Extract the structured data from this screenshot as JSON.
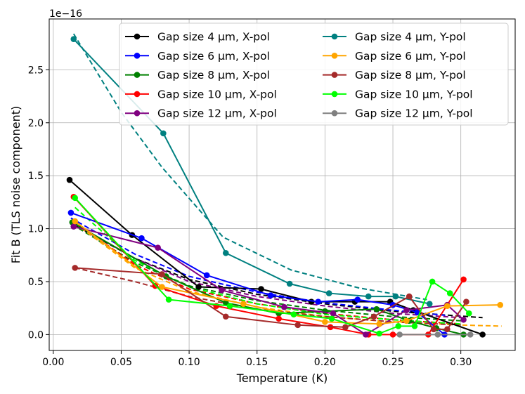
{
  "chart_data": {
    "type": "line",
    "xlabel": "Temperature (K)",
    "ylabel": "Fit B (TLS noise component)",
    "offset_label": "1e−16",
    "xlim": [
      -0.003,
      0.34
    ],
    "ylim": [
      -0.15,
      2.98
    ],
    "xticks": [
      0.0,
      0.05,
      0.1,
      0.15,
      0.2,
      0.25,
      0.3
    ],
    "xtick_labels": [
      "0.00",
      "0.05",
      "0.10",
      "0.15",
      "0.20",
      "0.25",
      "0.30"
    ],
    "yticks": [
      0.0,
      0.5,
      1.0,
      1.5,
      2.0,
      2.5
    ],
    "ytick_labels": [
      "0.0",
      "0.5",
      "1.0",
      "1.5",
      "2.0",
      "2.5"
    ],
    "grid": true,
    "legend_position": "top-right",
    "legend_columns": 2,
    "series": [
      {
        "name": "Gap size 4 μm, X-pol",
        "color": "#000000",
        "x": [
          0.012,
          0.058,
          0.107,
          0.153,
          0.19,
          0.222,
          0.248,
          0.265,
          0.316
        ],
        "y": [
          1.46,
          0.94,
          0.45,
          0.43,
          0.31,
          0.31,
          0.31,
          0.23,
          0.0
        ],
        "fit": [
          [
            0.012,
            1.06
          ],
          [
            0.06,
            0.72
          ],
          [
            0.1,
            0.52
          ],
          [
            0.15,
            0.38
          ],
          [
            0.2,
            0.29
          ],
          [
            0.25,
            0.22
          ],
          [
            0.316,
            0.16
          ]
        ]
      },
      {
        "name": "Gap size 6 μm, X-pol",
        "color": "#0000ff",
        "x": [
          0.013,
          0.065,
          0.113,
          0.16,
          0.195,
          0.224,
          0.25,
          0.268,
          0.288
        ],
        "y": [
          1.15,
          0.91,
          0.56,
          0.37,
          0.31,
          0.33,
          0.28,
          0.21,
          0.0
        ],
        "fit": [
          [
            0.013,
            1.1
          ],
          [
            0.06,
            0.76
          ],
          [
            0.1,
            0.55
          ],
          [
            0.15,
            0.4
          ],
          [
            0.2,
            0.3
          ],
          [
            0.25,
            0.23
          ],
          [
            0.29,
            0.18
          ]
        ]
      },
      {
        "name": "Gap size 8 μm, X-pol",
        "color": "#008000",
        "x": [
          0.014,
          0.083,
          0.127,
          0.166,
          0.2,
          0.238,
          0.262,
          0.282,
          0.302
        ],
        "y": [
          1.06,
          0.55,
          0.3,
          0.2,
          0.22,
          0.24,
          0.13,
          0.06,
          0.0
        ],
        "fit": [
          [
            0.014,
            1.04
          ],
          [
            0.06,
            0.68
          ],
          [
            0.1,
            0.46
          ],
          [
            0.15,
            0.32
          ],
          [
            0.2,
            0.23
          ],
          [
            0.25,
            0.17
          ],
          [
            0.3,
            0.13
          ]
        ]
      },
      {
        "name": "Gap size 10 μm, X-pol",
        "color": "#ff0000",
        "x": [
          0.015,
          0.075,
          0.12,
          0.166,
          0.204,
          0.232,
          0.25,
          0.276,
          0.302
        ],
        "y": [
          1.3,
          0.46,
          0.27,
          0.15,
          0.07,
          0.0,
          0.0,
          0.0,
          0.52
        ],
        "fit": [
          [
            0.015,
            1.07
          ],
          [
            0.06,
            0.66
          ],
          [
            0.1,
            0.43
          ],
          [
            0.15,
            0.29
          ],
          [
            0.2,
            0.2
          ],
          [
            0.25,
            0.14
          ],
          [
            0.3,
            0.1
          ]
        ]
      },
      {
        "name": "Gap size 12 μm, X-pol",
        "color": "#800080",
        "x": [
          0.015,
          0.077,
          0.124,
          0.17,
          0.206,
          0.23,
          0.26,
          0.29,
          0.302
        ],
        "y": [
          1.02,
          0.82,
          0.42,
          0.26,
          0.2,
          0.0,
          0.23,
          0.28,
          0.14
        ],
        "fit": [
          [
            0.015,
            1.05
          ],
          [
            0.06,
            0.72
          ],
          [
            0.1,
            0.5
          ],
          [
            0.15,
            0.36
          ],
          [
            0.2,
            0.27
          ],
          [
            0.25,
            0.2
          ],
          [
            0.3,
            0.16
          ]
        ]
      },
      {
        "name": "Gap size 4 μm, Y-pol",
        "color": "#008080",
        "x": [
          0.015,
          0.081,
          0.127,
          0.174,
          0.203,
          0.232,
          0.252,
          0.277
        ],
        "y": [
          2.79,
          1.9,
          0.77,
          0.48,
          0.39,
          0.36,
          0.36,
          0.29
        ],
        "fit": [
          [
            0.015,
            2.84
          ],
          [
            0.05,
            2.1
          ],
          [
            0.08,
            1.58
          ],
          [
            0.125,
            0.92
          ],
          [
            0.175,
            0.61
          ],
          [
            0.225,
            0.44
          ],
          [
            0.275,
            0.33
          ]
        ]
      },
      {
        "name": "Gap size 6 μm, Y-pol",
        "color": "#ffa500",
        "x": [
          0.016,
          0.08,
          0.14,
          0.2,
          0.24,
          0.26,
          0.29,
          0.329
        ],
        "y": [
          1.07,
          0.45,
          0.29,
          0.12,
          0.1,
          0.13,
          0.27,
          0.28
        ],
        "fit": [
          [
            0.016,
            1.05
          ],
          [
            0.06,
            0.63
          ],
          [
            0.1,
            0.41
          ],
          [
            0.15,
            0.26
          ],
          [
            0.2,
            0.17
          ],
          [
            0.25,
            0.12
          ],
          [
            0.3,
            0.09
          ],
          [
            0.33,
            0.08
          ]
        ]
      },
      {
        "name": "Gap size 8 μm, Y-pol",
        "color": "#a52a2a",
        "x": [
          0.016,
          0.08,
          0.127,
          0.18,
          0.215,
          0.236,
          0.262,
          0.28,
          0.29,
          0.304
        ],
        "y": [
          0.63,
          0.57,
          0.17,
          0.09,
          0.07,
          0.17,
          0.36,
          0.05,
          0.05,
          0.31
        ],
        "fit": [
          [
            0.016,
            0.63
          ],
          [
            0.06,
            0.5
          ],
          [
            0.1,
            0.36
          ],
          [
            0.15,
            0.24
          ],
          [
            0.2,
            0.17
          ],
          [
            0.25,
            0.12
          ],
          [
            0.3,
            0.09
          ]
        ]
      },
      {
        "name": "Gap size 10 μm, Y-pol",
        "color": "#00ff00",
        "x": [
          0.016,
          0.085,
          0.13,
          0.177,
          0.205,
          0.24,
          0.254,
          0.266,
          0.279,
          0.292,
          0.306
        ],
        "y": [
          1.29,
          0.33,
          0.27,
          0.19,
          0.15,
          0.01,
          0.08,
          0.08,
          0.5,
          0.39,
          0.2
        ],
        "fit": [
          [
            0.016,
            1.2
          ],
          [
            0.06,
            0.7
          ],
          [
            0.1,
            0.45
          ],
          [
            0.15,
            0.29
          ],
          [
            0.2,
            0.19
          ],
          [
            0.25,
            0.14
          ],
          [
            0.3,
            0.1
          ]
        ]
      },
      {
        "name": "Gap size 12 μm, Y-pol",
        "color": "#808080",
        "x": [
          0.255,
          0.283,
          0.307
        ],
        "y": [
          0.0,
          0.0,
          0.0
        ],
        "fit": []
      }
    ]
  }
}
